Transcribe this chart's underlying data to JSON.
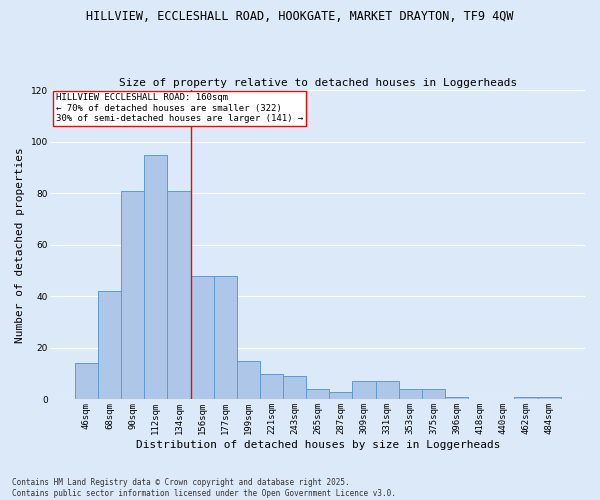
{
  "title_line1": "HILLVIEW, ECCLESHALL ROAD, HOOKGATE, MARKET DRAYTON, TF9 4QW",
  "title_line2": "Size of property relative to detached houses in Loggerheads",
  "xlabel": "Distribution of detached houses by size in Loggerheads",
  "ylabel": "Number of detached properties",
  "categories": [
    "46sqm",
    "68sqm",
    "90sqm",
    "112sqm",
    "134sqm",
    "156sqm",
    "177sqm",
    "199sqm",
    "221sqm",
    "243sqm",
    "265sqm",
    "287sqm",
    "309sqm",
    "331sqm",
    "353sqm",
    "375sqm",
    "396sqm",
    "418sqm",
    "440sqm",
    "462sqm",
    "484sqm"
  ],
  "values": [
    14,
    42,
    81,
    95,
    81,
    48,
    48,
    15,
    10,
    9,
    4,
    3,
    7,
    7,
    4,
    4,
    1,
    0,
    0,
    1,
    1
  ],
  "bar_color": "#aec6e8",
  "bar_edge_color": "#5b9bd5",
  "ylim": [
    0,
    120
  ],
  "yticks": [
    0,
    20,
    40,
    60,
    80,
    100,
    120
  ],
  "vline_x": 4.5,
  "annotation_text_line1": "HILLVIEW ECCLESHALL ROAD: 160sqm",
  "annotation_text_line2": "← 70% of detached houses are smaller (322)",
  "annotation_text_line3": "30% of semi-detached houses are larger (141) →",
  "footnote_line1": "Contains HM Land Registry data © Crown copyright and database right 2025.",
  "footnote_line2": "Contains public sector information licensed under the Open Government Licence v3.0.",
  "background_color": "#dce9f8",
  "plot_background_color": "#dce9f8",
  "grid_color": "#ffffff",
  "title1_fontsize": 8.5,
  "title2_fontsize": 8.0,
  "ylabel_fontsize": 8,
  "xlabel_fontsize": 8,
  "tick_fontsize": 6.5,
  "annot_fontsize": 6.5,
  "footnote_fontsize": 5.5
}
